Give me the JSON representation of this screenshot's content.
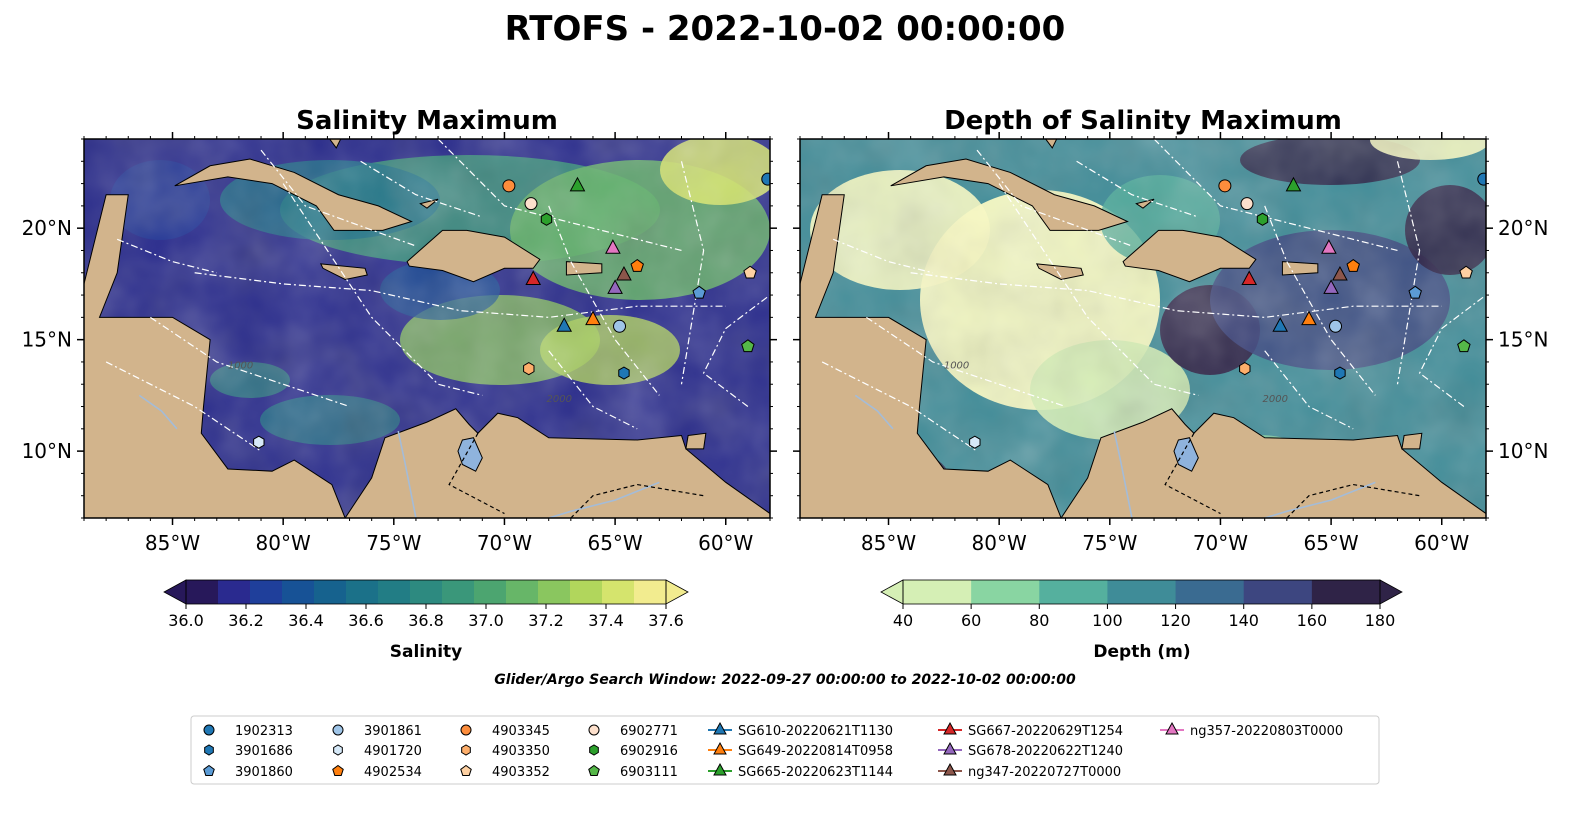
{
  "suptitle": "RTOFS - 2022-10-02 00:00:00",
  "search_window": "Glider/Argo Search Window: 2022-09-27 00:00:00 to 2022-10-02 00:00:00",
  "chart_data": [
    {
      "type": "heatmap",
      "title": "Salinity Maximum",
      "xlim": [
        -89,
        -58
      ],
      "ylim": [
        7,
        24
      ],
      "xticks": [
        {
          "value": -85,
          "label": "85°W"
        },
        {
          "value": -80,
          "label": "80°W"
        },
        {
          "value": -75,
          "label": "75°W"
        },
        {
          "value": -70,
          "label": "70°W"
        },
        {
          "value": -65,
          "label": "65°W"
        },
        {
          "value": -60,
          "label": "60°W"
        }
      ],
      "yticks": [
        {
          "value": 10,
          "label": "10°N"
        },
        {
          "value": 15,
          "label": "15°N"
        },
        {
          "value": 20,
          "label": "20°N"
        }
      ],
      "ytick_side": "left",
      "colorbar": {
        "label": "Salinity",
        "ticks": [
          "36.0",
          "36.2",
          "36.4",
          "36.6",
          "36.8",
          "37.0",
          "37.2",
          "37.4",
          "37.6"
        ],
        "range": [
          36.0,
          37.6
        ],
        "extend": "both",
        "colors": [
          "#27185a",
          "#2a2a8f",
          "#1f3f9b",
          "#175296",
          "#16628e",
          "#1b7189",
          "#227d85",
          "#2d8a80",
          "#3a977a",
          "#4ca570",
          "#67b668",
          "#8ac65f",
          "#b1d65c",
          "#d5e46d",
          "#f2ec8f"
        ]
      }
    },
    {
      "type": "heatmap",
      "title": "Depth of Salinity Maximum",
      "xlim": [
        -89,
        -58
      ],
      "ylim": [
        7,
        24
      ],
      "xticks": [
        {
          "value": -85,
          "label": "85°W"
        },
        {
          "value": -80,
          "label": "80°W"
        },
        {
          "value": -75,
          "label": "75°W"
        },
        {
          "value": -70,
          "label": "70°W"
        },
        {
          "value": -65,
          "label": "65°W"
        },
        {
          "value": -60,
          "label": "60°W"
        }
      ],
      "yticks": [
        {
          "value": 10,
          "label": "10°N"
        },
        {
          "value": 15,
          "label": "15°N"
        },
        {
          "value": 20,
          "label": "20°N"
        }
      ],
      "ytick_side": "right",
      "colorbar": {
        "label": "Depth (m)",
        "ticks": [
          "40",
          "60",
          "80",
          "100",
          "120",
          "140",
          "160",
          "180"
        ],
        "range": [
          40,
          180
        ],
        "extend": "both",
        "colors": [
          "#d5efb5",
          "#89d5a2",
          "#55b09e",
          "#3f8c98",
          "#3a6b91",
          "#3d4680",
          "#2f2347"
        ]
      }
    }
  ],
  "observations": [
    {
      "id": "1902313",
      "marker": "circle",
      "color": "#1f77b4",
      "lon": -58.1,
      "lat": 22.2
    },
    {
      "id": "3901686",
      "marker": "hexagon",
      "color": "#1f77b4",
      "lon": -64.6,
      "lat": 13.5
    },
    {
      "id": "3901860",
      "marker": "pentagon",
      "color": "#5b9bd5",
      "lon": -61.2,
      "lat": 17.1
    },
    {
      "id": "3901861",
      "marker": "circle",
      "color": "#9fc5e8",
      "lon": -64.8,
      "lat": 15.6
    },
    {
      "id": "4901720",
      "marker": "hexagon",
      "color": "#d6e9f8",
      "lon": -81.1,
      "lat": 10.4
    },
    {
      "id": "4902534",
      "marker": "pentagon",
      "color": "#ff7f0e",
      "lon": -64.0,
      "lat": 18.3
    },
    {
      "id": "4903345",
      "marker": "circle",
      "color": "#fd8d3c",
      "lon": -69.8,
      "lat": 21.9
    },
    {
      "id": "4903350",
      "marker": "hexagon",
      "color": "#fdae6b",
      "lon": -68.9,
      "lat": 13.7
    },
    {
      "id": "4903352",
      "marker": "pentagon",
      "color": "#fdd0a2",
      "lon": -58.9,
      "lat": 18.0
    },
    {
      "id": "6902771",
      "marker": "circle",
      "color": "#fde0cc",
      "lon": -68.8,
      "lat": 21.1
    },
    {
      "id": "6902916",
      "marker": "hexagon",
      "color": "#2ca02c",
      "lon": -68.1,
      "lat": 20.4
    },
    {
      "id": "6903111",
      "marker": "pentagon",
      "color": "#55b748",
      "lon": -59.0,
      "lat": 14.7
    },
    {
      "id": "SG610-20220621T1130",
      "marker": "triangle",
      "color": "#1f77b4",
      "lon": -67.3,
      "lat": 15.6
    },
    {
      "id": "SG649-20220814T0958",
      "marker": "triangle",
      "color": "#ff7f0e",
      "lon": -66.0,
      "lat": 15.9
    },
    {
      "id": "SG665-20220623T1144",
      "marker": "triangle",
      "color": "#2ca02c",
      "lon": -66.7,
      "lat": 21.9
    },
    {
      "id": "SG667-20220629T1254",
      "marker": "triangle",
      "color": "#d62728",
      "lon": -68.7,
      "lat": 17.7
    },
    {
      "id": "SG678-20220622T1240",
      "marker": "triangle",
      "color": "#9467bd",
      "lon": -65.0,
      "lat": 17.3
    },
    {
      "id": "ng347-20220727T0000",
      "marker": "triangle",
      "color": "#8c564b",
      "lon": -64.6,
      "lat": 17.9
    },
    {
      "id": "ng357-20220803T0000",
      "marker": "triangle",
      "color": "#e377c2",
      "lon": -65.1,
      "lat": 19.1
    }
  ],
  "contour_labels": [
    "1000",
    "2000"
  ],
  "colors": {
    "land": "#d2b48c",
    "lake": "#8fb3dd",
    "river": "#a4bcd8",
    "eez": "#ffffff",
    "border": "#000000"
  }
}
